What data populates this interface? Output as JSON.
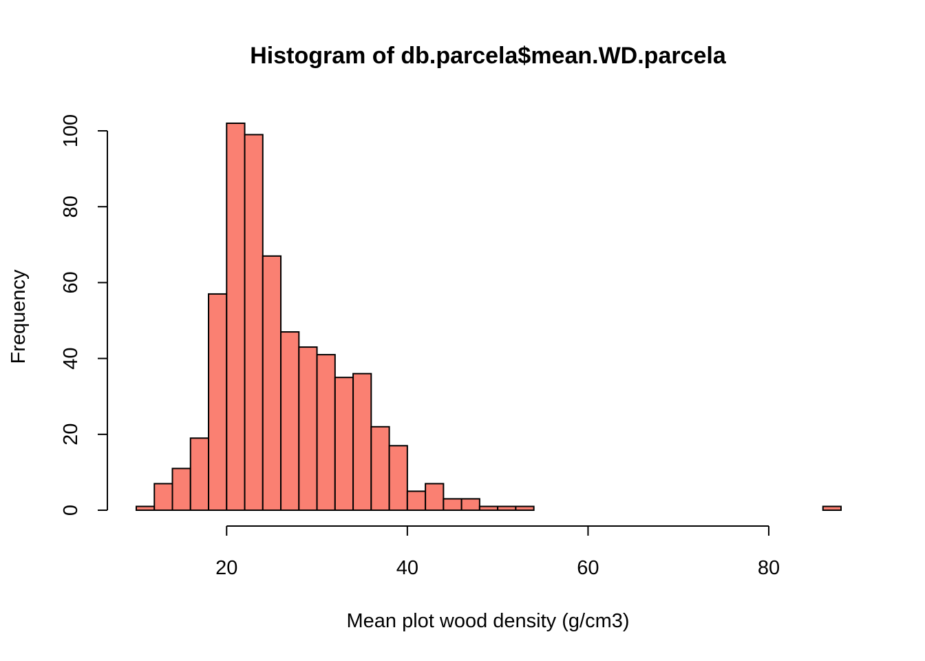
{
  "chart_data": {
    "type": "bar",
    "title": "Histogram of db.parcela$mean.WD.parcela",
    "xlabel": "Mean plot wood density (g/cm3)",
    "ylabel": "Frequency",
    "bar_color": "#FA8072",
    "xlim": [
      10,
      88
    ],
    "ylim": [
      0,
      102
    ],
    "x_ticks": [
      20,
      40,
      60,
      80
    ],
    "y_ticks": [
      0,
      20,
      40,
      60,
      80,
      100
    ],
    "bin_edges": [
      10,
      12,
      14,
      16,
      18,
      20,
      22,
      24,
      26,
      28,
      30,
      32,
      34,
      36,
      38,
      40,
      42,
      44,
      46,
      48,
      50,
      52,
      54,
      56,
      58,
      60,
      62,
      64,
      66,
      68,
      70,
      72,
      74,
      76,
      78,
      80,
      82,
      84,
      86,
      88
    ],
    "values": [
      1,
      7,
      11,
      19,
      57,
      102,
      99,
      67,
      47,
      43,
      41,
      35,
      36,
      22,
      17,
      5,
      7,
      3,
      3,
      1,
      1,
      1,
      0,
      0,
      0,
      0,
      0,
      0,
      0,
      0,
      0,
      0,
      0,
      0,
      0,
      0,
      0,
      0,
      1
    ]
  }
}
